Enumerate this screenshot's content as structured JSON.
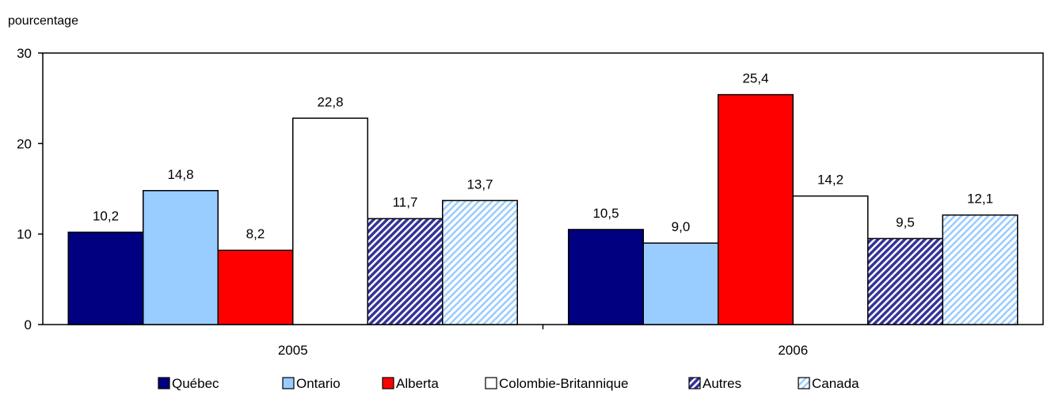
{
  "chart_data": {
    "type": "bar",
    "ylabel": "pourcentage",
    "ylim": [
      0,
      30
    ],
    "yticks": [
      0,
      10,
      20,
      30
    ],
    "categories": [
      "2005",
      "2006"
    ],
    "series": [
      {
        "name": "Québec",
        "values": [
          10.2,
          10.5
        ],
        "labels": [
          "10,2",
          "10,5"
        ],
        "color": "#000080",
        "pattern": "solid"
      },
      {
        "name": "Ontario",
        "values": [
          14.8,
          9.0
        ],
        "labels": [
          "14,8",
          "9,0"
        ],
        "color": "#99ccff",
        "pattern": "solid"
      },
      {
        "name": "Alberta",
        "values": [
          8.2,
          25.4
        ],
        "labels": [
          "8,2",
          "25,4"
        ],
        "color": "#ff0000",
        "pattern": "solid"
      },
      {
        "name": "Colombie-Britannique",
        "values": [
          22.8,
          14.2
        ],
        "labels": [
          "22,8",
          "14,2"
        ],
        "color": "#ffffff",
        "pattern": "solid"
      },
      {
        "name": "Autres",
        "values": [
          11.7,
          9.5
        ],
        "labels": [
          "11,7",
          "9,5"
        ],
        "color": "#333399",
        "pattern": "diagonal-dark"
      },
      {
        "name": "Canada",
        "values": [
          13.7,
          12.1
        ],
        "labels": [
          "13,7",
          "12,1"
        ],
        "color": "#99ccff",
        "pattern": "diagonal-light"
      }
    ],
    "legend_position": "bottom",
    "grid": false
  }
}
